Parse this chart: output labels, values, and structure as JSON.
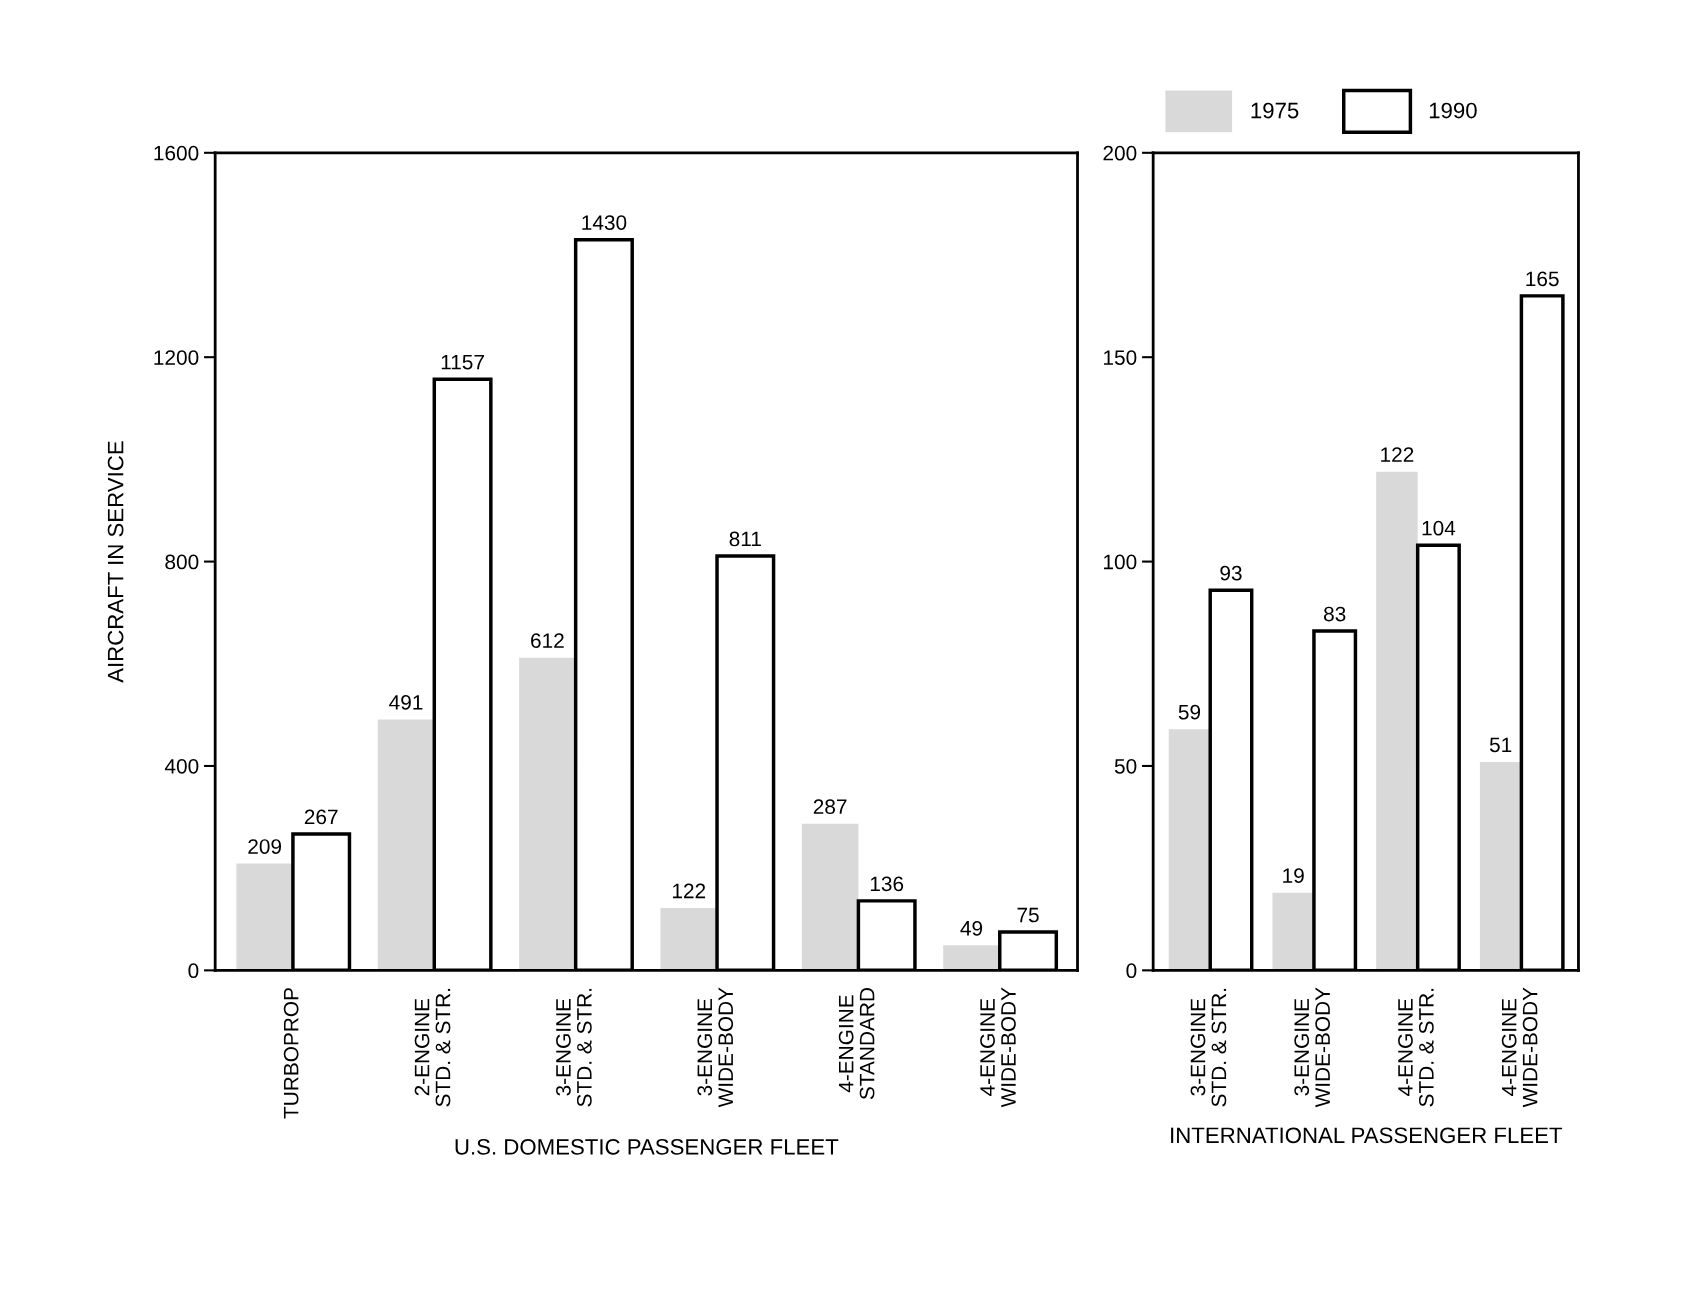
{
  "chart_data": [
    {
      "type": "bar",
      "xlabel": "U.S. DOMESTIC PASSENGER FLEET",
      "ylabel": "AIRCRAFT IN SERVICE",
      "categories": [
        "TURBOPROP",
        "2-ENGINE\nSTD. & STR.",
        "3-ENGINE\nSTD. & STR.",
        "3-ENGINE\nWIDE-BODY",
        "4-ENGINE\nSTANDARD",
        "4-ENGINE\nWIDE-BODY"
      ],
      "series": [
        {
          "name": "1975",
          "color": "#d9d9d9",
          "values": [
            209,
            491,
            612,
            122,
            287,
            49
          ]
        },
        {
          "name": "1990",
          "color": "#ffffff",
          "values": [
            267,
            1157,
            1430,
            811,
            136,
            75
          ]
        }
      ],
      "ylim": [
        0,
        1600
      ],
      "yticks": [
        0,
        400,
        800,
        1200,
        1600
      ],
      "data_labels": true,
      "grid": false,
      "legend": "top right"
    },
    {
      "type": "bar",
      "xlabel": "INTERNATIONAL PASSENGER FLEET",
      "categories": [
        "3-ENGINE\nSTD. & STR.",
        "3-ENGINE\nWIDE-BODY",
        "4-ENGINE\nSTD. & STR.",
        "4-ENGINE\nWIDE-BODY"
      ],
      "series": [
        {
          "name": "1975",
          "color": "#d9d9d9",
          "values": [
            59,
            19,
            122,
            51
          ]
        },
        {
          "name": "1990",
          "color": "#ffffff",
          "values": [
            93,
            83,
            104,
            165
          ]
        }
      ],
      "ylim": [
        0,
        200
      ],
      "yticks": [
        0,
        50,
        100,
        150,
        200
      ],
      "data_labels": true,
      "grid": false
    }
  ]
}
